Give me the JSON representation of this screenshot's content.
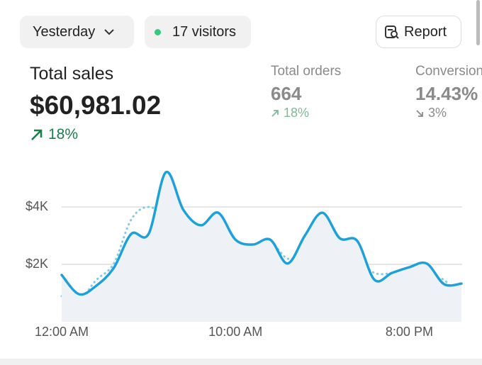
{
  "header": {
    "date_filter": "Yesterday",
    "visitors": "17 visitors",
    "report_button": "Report"
  },
  "metrics": [
    {
      "label": "Total sales",
      "value": "$60,981.02",
      "change": "18%"
    },
    {
      "label": "Total orders",
      "value": "664",
      "change": "18%"
    },
    {
      "label": "Conversion",
      "value": "14.43%",
      "change": "3%"
    }
  ],
  "chart_data": {
    "type": "line",
    "categories": [
      "12:00 AM",
      null,
      null,
      null,
      null,
      null,
      null,
      null,
      null,
      null,
      "10:00 AM",
      null,
      null,
      null,
      null,
      null,
      null,
      null,
      null,
      null,
      "8:00 PM",
      null,
      null,
      null
    ],
    "series": [
      {
        "color": "#1ea1db",
        "style": "solid",
        "values": [
          1630,
          960,
          1260,
          1880,
          3060,
          3060,
          5210,
          3900,
          3360,
          3800,
          2860,
          2690,
          2860,
          2030,
          3010,
          3800,
          2910,
          2820,
          1460,
          1700,
          1900,
          2030,
          1310,
          1330
        ]
      },
      {
        "color": "#86c8e8",
        "style": "dotted",
        "values": [
          890,
          770,
          1460,
          2030,
          3560,
          4000,
          3560,
          2440,
          3360,
          2940,
          2320,
          1830,
          2690,
          2200,
          2320,
          1950,
          2690,
          2200,
          1700,
          1700,
          1830,
          1460,
          1460,
          640
        ]
      }
    ],
    "ylim": [
      0,
      5500
    ],
    "yticks": [
      {
        "value": 2000,
        "label": "$2K"
      },
      {
        "value": 4000,
        "label": "$4K"
      }
    ],
    "grid": true
  }
}
